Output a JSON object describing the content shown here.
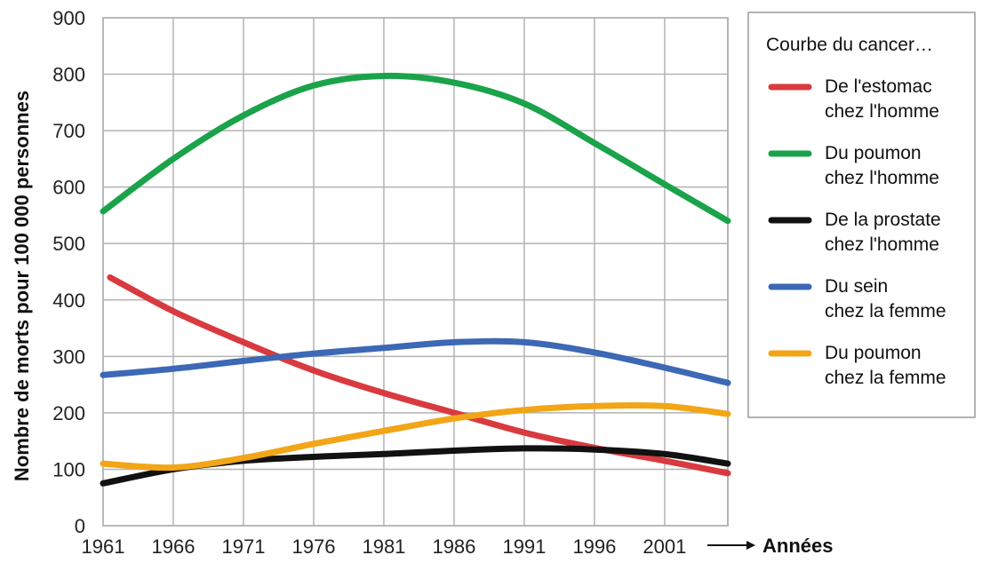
{
  "chart_data": {
    "type": "line",
    "xlabel": "Années",
    "ylabel": "Nombre de morts pour 100 000 personnes",
    "x_ticks": [
      "1961",
      "1966",
      "1971",
      "1976",
      "1981",
      "1986",
      "1991",
      "1996",
      "2001"
    ],
    "y_ticks": [
      "0",
      "100",
      "200",
      "300",
      "400",
      "500",
      "600",
      "700",
      "800",
      "900"
    ],
    "xlim": [
      1961,
      2005.5
    ],
    "ylim": [
      0,
      900
    ],
    "grid": true,
    "legend_title": "Courbe du cancer…",
    "legend_position": "right",
    "series": [
      {
        "name_line1": "De l'estomac",
        "name_line2": "chez l'homme",
        "color": "#d93a3f",
        "x": [
          1961.5,
          1966,
          1971,
          1976,
          1981,
          1986,
          1991,
          1996,
          2001,
          2005.5
        ],
        "y": [
          440,
          380,
          325,
          275,
          235,
          200,
          165,
          138,
          115,
          93
        ]
      },
      {
        "name_line1": "Du poumon",
        "name_line2": "chez l'homme",
        "color": "#1aa34a",
        "x": [
          1961,
          1966,
          1971,
          1976,
          1981,
          1986,
          1991,
          1996,
          2001,
          2005.5
        ],
        "y": [
          557,
          650,
          727,
          780,
          797,
          785,
          748,
          678,
          605,
          540
        ]
      },
      {
        "name_line1": "De la prostate",
        "name_line2": "chez l'homme",
        "color": "#111111",
        "x": [
          1961,
          1966,
          1971,
          1976,
          1981,
          1986,
          1991,
          1996,
          2001,
          2005.5
        ],
        "y": [
          75,
          100,
          115,
          122,
          127,
          133,
          137,
          135,
          127,
          110
        ]
      },
      {
        "name_line1": "Du sein",
        "name_line2": "chez la femme",
        "color": "#3c68b5",
        "x": [
          1961,
          1966,
          1971,
          1976,
          1981,
          1986,
          1991,
          1996,
          2001,
          2005.5
        ],
        "y": [
          267,
          278,
          292,
          305,
          315,
          325,
          325,
          307,
          280,
          253
        ]
      },
      {
        "name_line1": "Du poumon",
        "name_line2": "chez la femme",
        "color": "#f2a516",
        "x": [
          1961,
          1966,
          1971,
          1976,
          1981,
          1986,
          1991,
          1996,
          2001,
          2005.5
        ],
        "y": [
          110,
          103,
          120,
          145,
          168,
          190,
          205,
          212,
          212,
          198
        ]
      }
    ]
  }
}
